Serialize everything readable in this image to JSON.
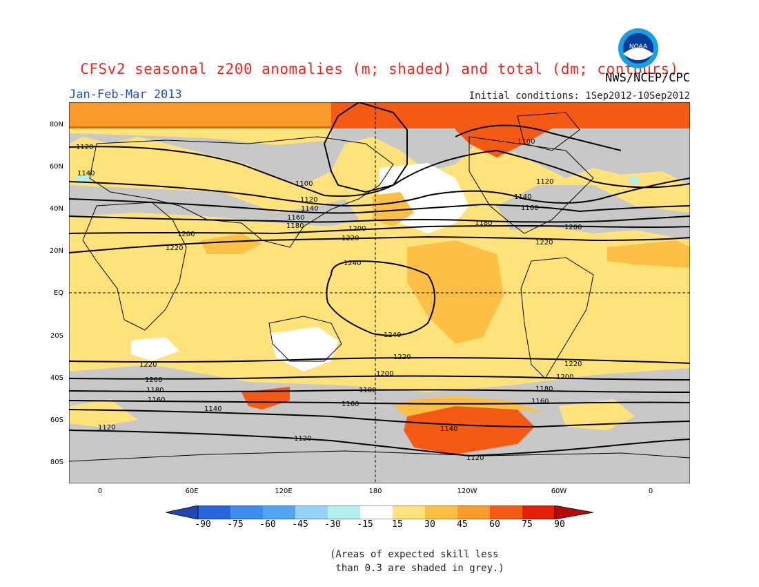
{
  "title": "CFSv2 seasonal z200 anomalies (m; shaded) and total (dm; contours)",
  "season": "Jan-Feb-Mar 2013",
  "agency": "NWS/NCEP/CPC",
  "initial_conditions": "Initial conditions: 1Sep2012-10Sep2012",
  "logo_text": "NOAA",
  "colors": {
    "title": "#e8281e",
    "season": "#1e50c8",
    "grey_skill": "#c8c8c8",
    "neutral": "#ffffff",
    "pos15": "#ffe37a",
    "pos30": "#fdbf45",
    "pos45": "#f99a2b",
    "pos60": "#f55a14",
    "pos75": "#e41e0a",
    "pos90": "#b40a0a",
    "neg15": "#b4f0f0",
    "neg30": "#96d2fa",
    "neg45": "#50a5f5",
    "neg60": "#3c8cf0",
    "neg75": "#2864dc",
    "neg90": "#1e46b4"
  },
  "axes": {
    "lat_labels": [
      "80N",
      "60N",
      "40N",
      "20N",
      "EQ",
      "20S",
      "40S",
      "60S",
      "80S"
    ],
    "lon_labels": [
      "0",
      "60E",
      "120E",
      "180",
      "120W",
      "60W",
      "0"
    ]
  },
  "contours": [
    {
      "label": "1100"
    },
    {
      "label": "1120"
    },
    {
      "label": "1140"
    },
    {
      "label": "1160"
    },
    {
      "label": "1180"
    },
    {
      "label": "1200"
    },
    {
      "label": "1220"
    },
    {
      "label": "1240"
    }
  ],
  "colorbar": {
    "labels": [
      "-90",
      "-75",
      "-60",
      "-45",
      "-30",
      "-15",
      "15",
      "30",
      "45",
      "60",
      "75",
      "90"
    ]
  },
  "note_line1": "(Areas of expected skill less",
  "note_line2": " than 0.3 are shaded in grey.)"
}
